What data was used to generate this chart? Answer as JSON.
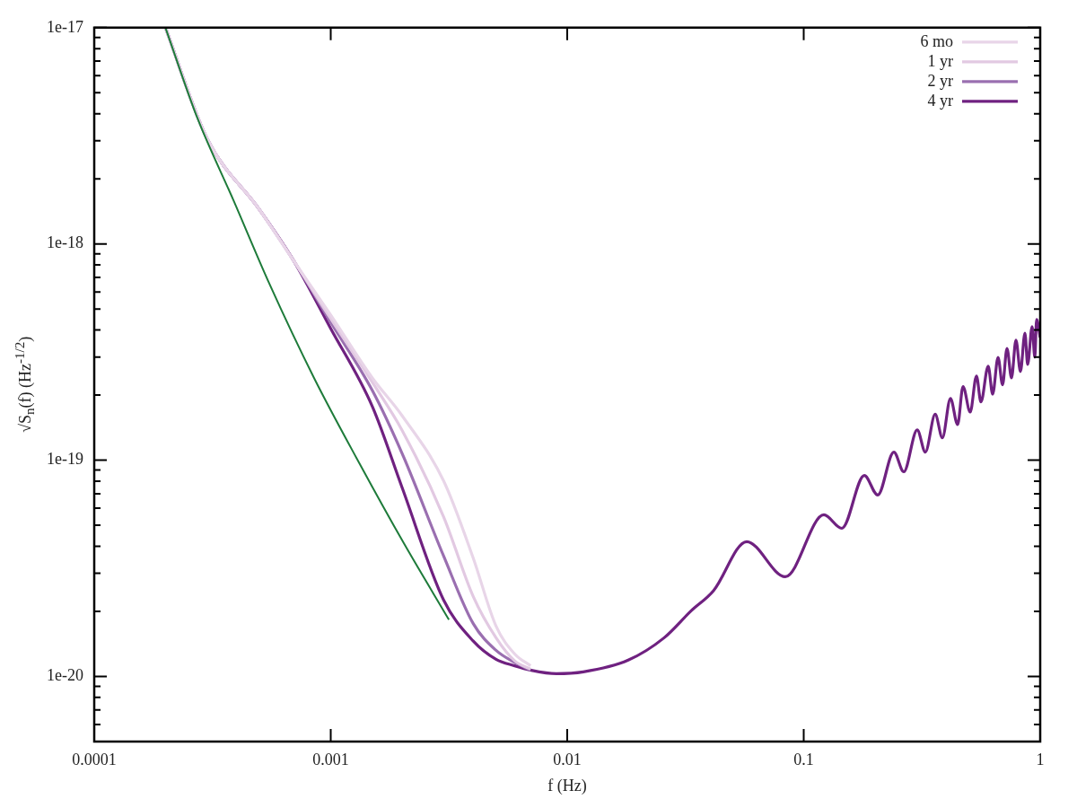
{
  "chart_data": {
    "type": "line",
    "xlabel": "f (Hz)",
    "ylabel": "√S$_{n}$(f)  (Hz$^{-1/2}$)",
    "log": "xy",
    "legend": "top right",
    "marker": "none",
    "xlim": [
      0.0001,
      1
    ],
    "xticks": [
      0.0001,
      0.001,
      0.01,
      0.1,
      1
    ],
    "ylim": [
      5e-21,
      1e-17
    ],
    "yticks": [
      {
        "value": 1e-17,
        "label": "1e-17"
      },
      {
        "value": 9e-18,
        "label": null
      },
      {
        "value": 8e-18,
        "label": null
      },
      {
        "value": 7e-18,
        "label": null
      },
      {
        "value": 6e-18,
        "label": null
      },
      {
        "value": 5e-18,
        "label": null
      },
      {
        "value": 4e-18,
        "label": null
      },
      {
        "value": 3e-18,
        "label": null
      },
      {
        "value": 2e-18,
        "label": null
      },
      {
        "value": 1e-18,
        "label": "1e-18"
      },
      {
        "value": 9e-19,
        "label": null
      },
      {
        "value": 8e-19,
        "label": null
      },
      {
        "value": 7e-19,
        "label": null
      },
      {
        "value": 6e-19,
        "label": null
      },
      {
        "value": 5e-19,
        "label": null
      },
      {
        "value": 4e-19,
        "label": null
      },
      {
        "value": 3e-19,
        "label": null
      },
      {
        "value": 2e-19,
        "label": null
      },
      {
        "value": 1e-19,
        "label": "1e-19"
      },
      {
        "value": 9e-20,
        "label": null
      },
      {
        "value": 8e-20,
        "label": null
      },
      {
        "value": 7e-20,
        "label": null
      },
      {
        "value": 6e-20,
        "label": null
      },
      {
        "value": 5e-20,
        "label": null
      },
      {
        "value": 4e-20,
        "label": null
      },
      {
        "value": 3e-20,
        "label": null
      },
      {
        "value": 2e-20,
        "label": null
      },
      {
        "value": 1e-20,
        "label": "1e-20"
      },
      {
        "value": 9e-21,
        "label": null
      },
      {
        "value": 8e-21,
        "label": null
      },
      {
        "value": 7e-21,
        "label": null
      },
      {
        "value": 6e-21,
        "label": null
      }
    ],
    "series": [
      {
        "color": "#1e7b3a",
        "x": [
          0.0002,
          0.000273,
          0.000388,
          0.00055,
          0.00085,
          0.00132,
          0.00204,
          0.00316
        ],
        "values": [
          1e-17,
          3.82e-18,
          1.59e-18,
          6.55e-19,
          2.4e-19,
          9.7e-20,
          4.12e-20,
          1.83e-20
        ]
      },
      {
        "name": "6 mo",
        "color": "#e8d5e8",
        "x": [
          0.0002,
          0.0003,
          0.0005,
          0.0007,
          0.001,
          0.0015,
          0.002,
          0.003,
          0.004,
          0.005,
          0.006,
          0.007
        ],
        "values": [
          1e-17,
          3.07e-18,
          1.44e-18,
          8.3e-19,
          4.69e-19,
          2.4e-19,
          1.61e-19,
          8.03e-20,
          3.54e-20,
          1.71e-20,
          1.27e-20,
          1.12e-20
        ]
      },
      {
        "name": "1 yr",
        "color": "#e2c9e2",
        "x": [
          0.0002,
          0.0003,
          0.0005,
          0.0007,
          0.001,
          0.0015,
          0.002,
          0.003,
          0.004,
          0.005,
          0.006,
          0.007
        ],
        "values": [
          1e-17,
          3.07e-18,
          1.44e-18,
          8.3e-19,
          4.51e-19,
          2.29e-19,
          1.38e-19,
          5.48e-20,
          2.35e-20,
          1.51e-20,
          1.18e-20,
          1.08e-20
        ]
      },
      {
        "name": "2 yr",
        "color": "#9a6fb0",
        "x": [
          0.0002,
          0.0003,
          0.0005,
          0.0007,
          0.001,
          0.0015,
          0.002,
          0.003,
          0.004,
          0.005,
          0.006,
          0.007
        ],
        "values": [
          1e-17,
          3.07e-18,
          1.44e-18,
          8.3e-19,
          4.34e-19,
          2.1e-19,
          1.08e-19,
          3.61e-20,
          1.76e-20,
          1.32e-20,
          1.16e-20,
          1.07e-20
        ]
      },
      {
        "name": "4 yr",
        "color": "#6f2180",
        "x": [
          0.0002,
          0.0003,
          0.0005,
          0.0007,
          0.001,
          0.0015,
          0.002,
          0.003,
          0.004,
          0.005,
          0.006,
          0.007,
          0.009,
          0.0117,
          0.01811,
          0.0257,
          0.03341,
          0.04155,
          0.0574,
          0.0836,
          0.1217,
          0.145,
          0.1804,
          0.2056,
          0.2406,
          0.2649,
          0.302,
          0.3268,
          0.3597,
          0.3858,
          0.4174,
          0.4475,
          0.4717,
          0.5058,
          0.5377,
          0.5616,
          0.6026,
          0.6295,
          0.6634,
          0.693,
          0.7238,
          0.7562,
          0.7898,
          0.825,
          0.8619,
          0.885,
          0.9243,
          0.9489,
          0.9656,
          1
        ],
        "values": [
          1e-17,
          3.07e-18,
          1.44e-18,
          8.3e-19,
          4.06e-19,
          1.77e-19,
          7.51e-20,
          2.26e-20,
          1.46e-20,
          1.2e-20,
          1.12e-20,
          1.07e-20,
          1.03e-20,
          1.05e-20,
          1.19e-20,
          1.51e-20,
          2.01e-20,
          2.49e-20,
          4.2e-20,
          2.89e-20,
          5.59e-20,
          4.84e-20,
          8.5e-20,
          6.9e-20,
          1.09e-19,
          8.84e-20,
          1.38e-19,
          1.09e-19,
          1.63e-19,
          1.27e-19,
          1.93e-19,
          1.46e-19,
          2.19e-19,
          1.67e-19,
          2.45e-19,
          1.86e-19,
          2.72e-19,
          2.02e-19,
          2.99e-19,
          2.23e-19,
          3.29e-19,
          2.4e-19,
          3.59e-19,
          2.57e-19,
          3.87e-19,
          2.77e-19,
          4.14e-19,
          2.99e-19,
          4.47e-19,
          3.69e-19
        ]
      }
    ]
  }
}
